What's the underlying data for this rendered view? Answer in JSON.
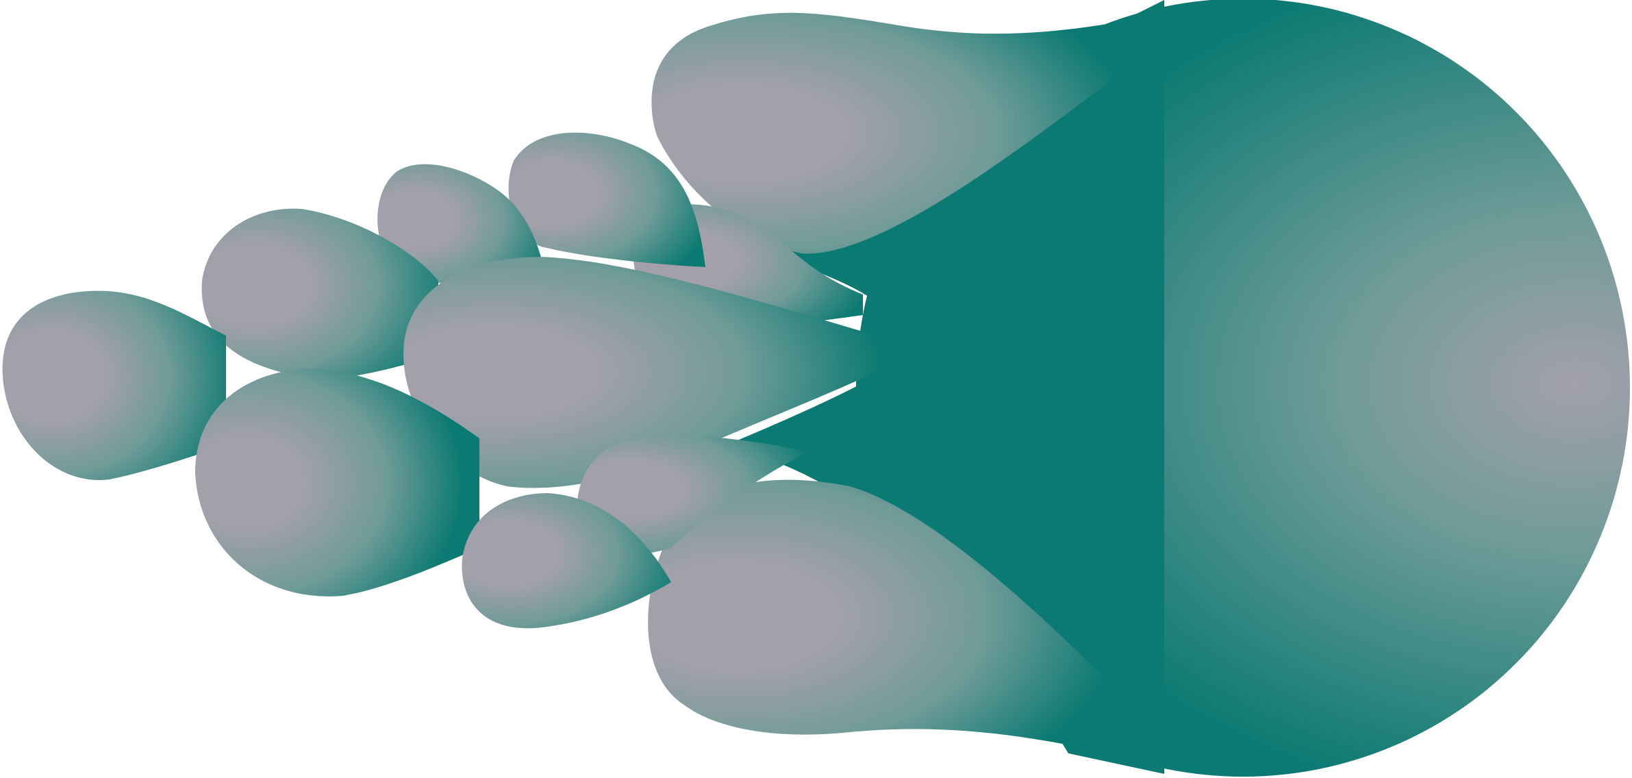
{
  "palette": {
    "background": "#ffffff",
    "lobe_light": "#a3a0aa",
    "lobe_mid": "#6f9b98",
    "lobe_dark": "#0a7a72"
  },
  "scene": {
    "subject": "abstract-teal-lobe-cluster"
  }
}
